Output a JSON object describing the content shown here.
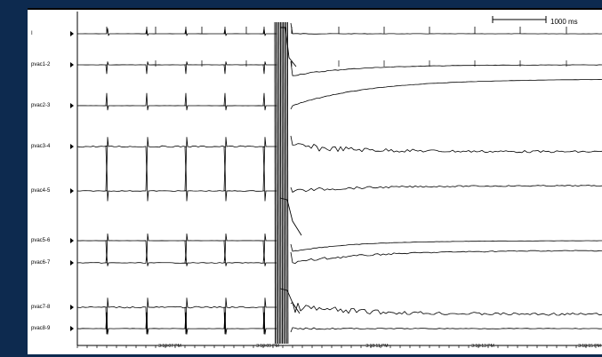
{
  "channels": [
    {
      "label": "I"
    },
    {
      "label": "pvac1-2"
    },
    {
      "label": "pvac2-3"
    },
    {
      "label": "pvac3-4"
    },
    {
      "label": "pvac4-5"
    },
    {
      "label": "pvac5-6"
    },
    {
      "label": "pvac6-7"
    },
    {
      "label": "pvac7-8"
    },
    {
      "label": "pvac8-9"
    }
  ],
  "time_labels": [
    "3:18:07 PM",
    "3:18:09 PM",
    "3:18:11 PM",
    "3:18:13 PM",
    "3:18:15 PM"
  ],
  "scale_bar": {
    "label": "1000 ms"
  },
  "colors": {
    "background": "#0d2a4f",
    "panel": "#ffffff",
    "trace": "#000000"
  }
}
